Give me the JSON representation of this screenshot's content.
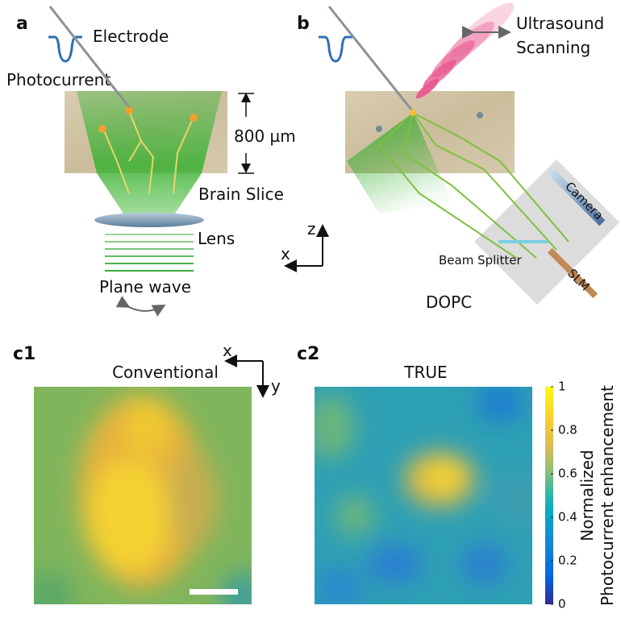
{
  "panels": {
    "a": {
      "label": "a",
      "electrode": "Electrode",
      "photocurrent": "Photocurrent",
      "thickness": "800 µm",
      "brain_slice": "Brain Slice",
      "lens": "Lens",
      "plane_wave": "Plane wave",
      "axis_z": "z",
      "axis_x": "x"
    },
    "b": {
      "label": "b",
      "ultrasound": [
        "Ultrasound",
        "Scanning"
      ],
      "camera": "Camera",
      "beam_splitter": "Beam Splitter",
      "slm": "SLM",
      "dopc": "DOPC"
    },
    "c1": {
      "label": "c1",
      "title": "Conventional",
      "axis_x": "x",
      "axis_y": "y"
    },
    "c2": {
      "label": "c2",
      "title": "TRUE",
      "colorbar": {
        "range": [
          0,
          1
        ],
        "ticks": [
          0,
          0.2,
          0.4,
          0.6,
          0.8,
          1
        ],
        "label": [
          "Normalized",
          "Photocurrent enhancement"
        ]
      }
    }
  }
}
